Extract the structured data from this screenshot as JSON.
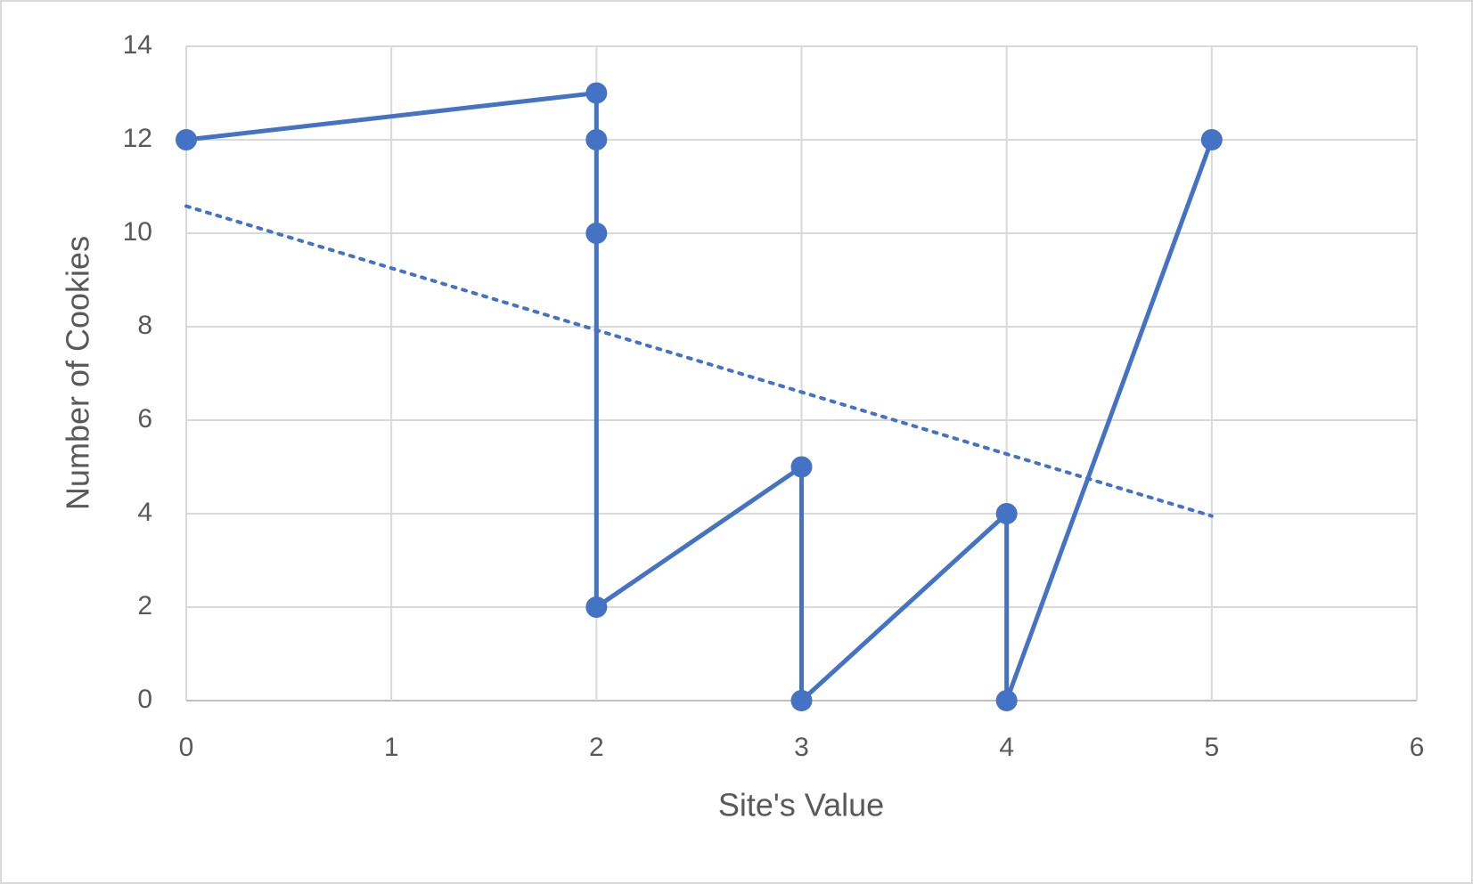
{
  "chart_data": {
    "type": "scatter",
    "x_label": "Site's Value",
    "y_label": "Number of Cookies",
    "series": [
      {
        "name": "Number of Cookies",
        "color": "#4472c4",
        "x": [
          0,
          2,
          2,
          2,
          2,
          3,
          3,
          4,
          4,
          5
        ],
        "values": [
          12,
          13,
          12,
          10,
          2,
          5,
          0,
          4,
          0,
          12
        ]
      }
    ],
    "trendline": {
      "x": [
        0,
        5
      ],
      "values": [
        10.58,
        3.95
      ],
      "style": "dotted"
    },
    "xlim": [
      0,
      6
    ],
    "xticks": [
      0,
      1,
      2,
      3,
      4,
      5,
      6
    ],
    "ylim": [
      0,
      14
    ],
    "yticks": [
      0,
      2,
      4,
      6,
      8,
      10,
      12,
      14
    ],
    "grid": true
  }
}
